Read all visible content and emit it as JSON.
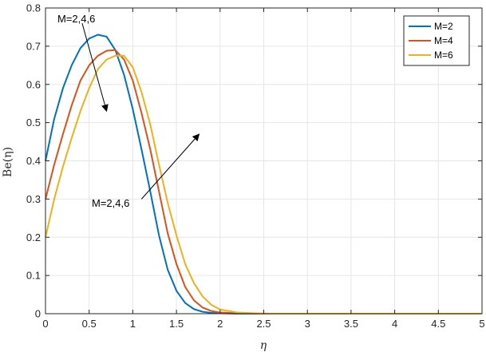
{
  "chart_data": {
    "type": "line",
    "title": "",
    "xlabel": "η",
    "ylabel": "Be(η)",
    "xlim": [
      0,
      5
    ],
    "ylim": [
      0,
      0.8
    ],
    "x_ticks": [
      0,
      0.5,
      1,
      1.5,
      2,
      2.5,
      3,
      3.5,
      4,
      4.5,
      5
    ],
    "x_tick_labels": [
      "0",
      "0.5",
      "1",
      "1.5",
      "2",
      "2.5",
      "3",
      "3.5",
      "4",
      "4.5",
      "5"
    ],
    "y_ticks": [
      0,
      0.1,
      0.2,
      0.3,
      0.4,
      0.5,
      0.6,
      0.7,
      0.8
    ],
    "y_tick_labels": [
      "0",
      "0.1",
      "0.2",
      "0.3",
      "0.4",
      "0.5",
      "0.6",
      "0.7",
      "0.8"
    ],
    "grid": true,
    "legend_position": "top-right",
    "x": [
      0,
      0.1,
      0.2,
      0.3,
      0.4,
      0.5,
      0.6,
      0.7,
      0.8,
      0.9,
      1.0,
      1.1,
      1.2,
      1.3,
      1.4,
      1.5,
      1.6,
      1.7,
      1.8,
      1.9,
      2.0,
      2.2,
      2.4,
      2.6,
      2.8,
      3.0,
      3.5,
      4.0,
      4.5,
      5.0
    ],
    "series": [
      {
        "name": "M=2",
        "color": "#0072BD",
        "values": [
          0.4,
          0.51,
          0.59,
          0.65,
          0.695,
          0.72,
          0.73,
          0.725,
          0.69,
          0.625,
          0.535,
          0.43,
          0.32,
          0.205,
          0.115,
          0.06,
          0.028,
          0.012,
          0.005,
          0.002,
          0.001,
          0.0,
          0.0,
          0.0,
          0.0,
          0.0,
          0.0,
          0.0,
          0.0,
          0.0
        ]
      },
      {
        "name": "M=4",
        "color": "#D95319",
        "values": [
          0.3,
          0.39,
          0.47,
          0.545,
          0.61,
          0.65,
          0.675,
          0.688,
          0.69,
          0.665,
          0.61,
          0.525,
          0.43,
          0.32,
          0.21,
          0.13,
          0.07,
          0.035,
          0.016,
          0.007,
          0.003,
          0.001,
          0.0,
          0.0,
          0.0,
          0.0,
          0.0,
          0.0,
          0.0,
          0.0
        ]
      },
      {
        "name": "M=6",
        "color": "#EDB120",
        "values": [
          0.2,
          0.3,
          0.385,
          0.46,
          0.53,
          0.59,
          0.64,
          0.665,
          0.675,
          0.675,
          0.645,
          0.58,
          0.495,
          0.39,
          0.29,
          0.205,
          0.13,
          0.08,
          0.045,
          0.023,
          0.011,
          0.003,
          0.001,
          0.0,
          0.0,
          0.0,
          0.0,
          0.0,
          0.0,
          0.0
        ]
      }
    ],
    "annotations": [
      {
        "text": "M=2,4,6",
        "arrow_from": [
          0.42,
          0.76
        ],
        "arrow_to": [
          0.7,
          0.53
        ]
      },
      {
        "text": "M=2,4,6",
        "arrow_from": [
          1.1,
          0.3
        ],
        "arrow_to": [
          1.76,
          0.47
        ]
      }
    ]
  }
}
